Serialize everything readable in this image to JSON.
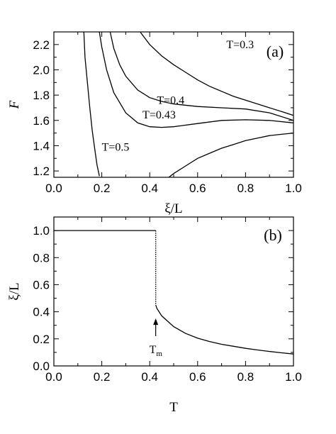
{
  "chart_data": [
    {
      "type": "line",
      "panel_label": "(a)",
      "xlabel": "ξ/L",
      "ylabel": "F",
      "xlim": [
        0.0,
        1.0
      ],
      "ylim": [
        1.15,
        2.3
      ],
      "xticks": [
        "0.0",
        "0.2",
        "0.4",
        "0.6",
        "0.8",
        "1.0"
      ],
      "yticks": [
        "1.2",
        "1.4",
        "1.6",
        "1.8",
        "2.0",
        "2.2"
      ],
      "series": [
        {
          "name": "T=0.3",
          "x": [
            0.36,
            0.4,
            0.45,
            0.5,
            0.55,
            0.6,
            0.65,
            0.7,
            0.75,
            0.8,
            0.85,
            0.9,
            0.95,
            1.0
          ],
          "y": [
            2.3,
            2.2,
            2.11,
            2.04,
            1.98,
            1.92,
            1.87,
            1.83,
            1.79,
            1.76,
            1.73,
            1.7,
            1.67,
            1.64
          ]
        },
        {
          "name": "T=0.4",
          "x": [
            0.235,
            0.25,
            0.275,
            0.3,
            0.35,
            0.4,
            0.45,
            0.5,
            0.6,
            0.7,
            0.8,
            0.9,
            1.0
          ],
          "y": [
            2.3,
            2.17,
            2.04,
            1.95,
            1.84,
            1.78,
            1.75,
            1.73,
            1.71,
            1.7,
            1.69,
            1.66,
            1.6
          ]
        },
        {
          "name": "T=0.43",
          "x": [
            0.19,
            0.2,
            0.22,
            0.25,
            0.3,
            0.35,
            0.4,
            0.45,
            0.5,
            0.6,
            0.7,
            0.8,
            0.9,
            1.0
          ],
          "y": [
            2.3,
            2.18,
            2.0,
            1.82,
            1.66,
            1.58,
            1.55,
            1.545,
            1.55,
            1.575,
            1.6,
            1.605,
            1.6,
            1.58
          ]
        },
        {
          "name": "T=0.5",
          "x": [
            0.125,
            0.13,
            0.14,
            0.15,
            0.16,
            0.17,
            0.18,
            0.19
          ],
          "y": [
            2.3,
            2.1,
            1.9,
            1.7,
            1.52,
            1.38,
            1.25,
            1.16
          ]
        },
        {
          "name": "",
          "x": [
            0.48,
            0.5,
            0.55,
            0.6,
            0.65,
            0.7,
            0.75,
            0.8,
            0.85,
            0.9,
            0.95,
            1.0
          ],
          "y": [
            1.15,
            1.18,
            1.24,
            1.3,
            1.34,
            1.38,
            1.41,
            1.44,
            1.46,
            1.48,
            1.49,
            1.5
          ]
        }
      ],
      "curve_labels": [
        {
          "text": "T=0.3",
          "x": 0.72,
          "y": 2.17
        },
        {
          "text": "T=0.4",
          "x": 0.43,
          "y": 1.73
        },
        {
          "text": "T=0.43",
          "x": 0.37,
          "y": 1.615
        },
        {
          "text": "T=0.5",
          "x": 0.2,
          "y": 1.36
        }
      ]
    },
    {
      "type": "line",
      "panel_label": "(b)",
      "xlabel": "T",
      "ylabel": "ξ/L",
      "xlim": [
        0.0,
        1.0
      ],
      "ylim": [
        0.0,
        1.1
      ],
      "xticks": [
        "0.0",
        "0.2",
        "0.4",
        "0.6",
        "0.8",
        "1.0"
      ],
      "yticks": [
        "0.0",
        "0.2",
        "0.4",
        "0.6",
        "0.8",
        "1.0"
      ],
      "series": [
        {
          "name": "",
          "x": [
            0.0,
            0.425
          ],
          "y": [
            1.0,
            1.0
          ]
        },
        {
          "name": "",
          "style": "dotted",
          "x": [
            0.425,
            0.425
          ],
          "y": [
            1.0,
            0.45
          ]
        },
        {
          "name": "",
          "x": [
            0.425,
            0.43,
            0.45,
            0.5,
            0.55,
            0.6,
            0.65,
            0.7,
            0.75,
            0.8,
            0.85,
            0.9,
            0.95,
            1.0
          ],
          "y": [
            0.45,
            0.425,
            0.37,
            0.29,
            0.24,
            0.205,
            0.18,
            0.16,
            0.145,
            0.13,
            0.118,
            0.107,
            0.097,
            0.088
          ]
        }
      ],
      "annotation": {
        "text": "T",
        "subscript": "m",
        "x": 0.425,
        "y_arrow_tip": 0.35,
        "y_arrow_tail": 0.22
      }
    }
  ]
}
